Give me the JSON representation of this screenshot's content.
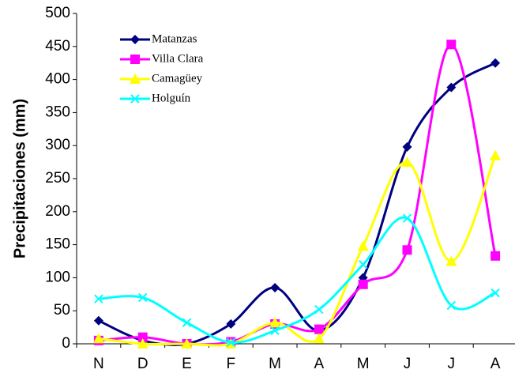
{
  "chart_data": {
    "type": "line",
    "y_label": "Precipitaciones (mm)",
    "categories": [
      "N",
      "D",
      "E",
      "F",
      "M",
      "A",
      "M",
      "J",
      "J",
      "A"
    ],
    "series": [
      {
        "name": "Matanzas",
        "color": "#000080",
        "marker": "diamond",
        "values": [
          35,
          5,
          0,
          30,
          85,
          20,
          100,
          298,
          388,
          425
        ]
      },
      {
        "name": "Villa Clara",
        "color": "#ff00ff",
        "marker": "square",
        "values": [
          5,
          10,
          0,
          3,
          30,
          22,
          90,
          142,
          453,
          133
        ]
      },
      {
        "name": "Camagüey",
        "color": "#ffff00",
        "marker": "triangle",
        "values": [
          8,
          0,
          0,
          0,
          32,
          8,
          148,
          275,
          125,
          285
        ]
      },
      {
        "name": "Holguín",
        "color": "#00ffff",
        "marker": "x",
        "values": [
          68,
          70,
          32,
          2,
          20,
          52,
          120,
          190,
          58,
          77
        ]
      }
    ],
    "ylim": [
      0,
      500
    ],
    "yticks": [
      0,
      50,
      100,
      150,
      200,
      250,
      300,
      350,
      400,
      450,
      500
    ],
    "smooth": true
  }
}
